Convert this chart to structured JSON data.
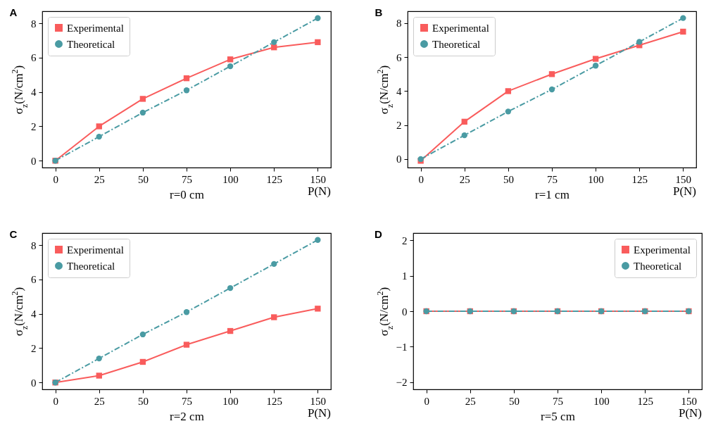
{
  "chart_data": [
    {
      "type": "line",
      "title": "A",
      "xlabel": "r=0 cm",
      "ylabel": "σ$_{z}$(N/cm$^{2}$)",
      "annotations": [
        "P(N)"
      ],
      "x": [
        0,
        25,
        50,
        75,
        100,
        125,
        150
      ],
      "xlim": [
        -7.5,
        157.5
      ],
      "xticks": [
        0,
        25,
        50,
        75,
        100,
        125,
        150
      ],
      "ylim": [
        -0.4,
        8.7
      ],
      "yticks": [
        0,
        2,
        4,
        6,
        8
      ],
      "legend": "top left",
      "series": [
        {
          "name": "Experimental",
          "color": "#f95c5c",
          "marker": "square",
          "line_style": "solid",
          "values": [
            0,
            2.0,
            3.6,
            4.8,
            5.9,
            6.6,
            6.9
          ]
        },
        {
          "name": "Theoretical",
          "color": "#4a9ba3",
          "marker": "circle",
          "line_style": "dashdot",
          "values": [
            0,
            1.4,
            2.8,
            4.1,
            5.5,
            6.9,
            8.3
          ]
        }
      ]
    },
    {
      "type": "line",
      "title": "B",
      "xlabel": "r=1 cm",
      "ylabel": "σ$_{z}$(N/cm$^{2}$)",
      "annotations": [
        "P(N)"
      ],
      "x": [
        0,
        25,
        50,
        75,
        100,
        125,
        150
      ],
      "xlim": [
        -7.5,
        157.5
      ],
      "xticks": [
        0,
        25,
        50,
        75,
        100,
        125,
        150
      ],
      "ylim": [
        -0.5,
        8.7
      ],
      "yticks": [
        0,
        2,
        4,
        6,
        8
      ],
      "legend": "top left",
      "series": [
        {
          "name": "Experimental",
          "color": "#f95c5c",
          "marker": "square",
          "line_style": "solid",
          "values": [
            -0.1,
            2.2,
            4.0,
            5.0,
            5.9,
            6.7,
            7.5
          ]
        },
        {
          "name": "Theoretical",
          "color": "#4a9ba3",
          "marker": "circle",
          "line_style": "dashdot",
          "values": [
            0,
            1.4,
            2.8,
            4.1,
            5.5,
            6.9,
            8.3
          ]
        }
      ]
    },
    {
      "type": "line",
      "title": "C",
      "xlabel": "r=2 cm",
      "ylabel": "σ$_{z}$(N/cm$^{2}$)",
      "annotations": [
        "P(N)"
      ],
      "x": [
        0,
        25,
        50,
        75,
        100,
        125,
        150
      ],
      "xlim": [
        -7.5,
        157.5
      ],
      "xticks": [
        0,
        25,
        50,
        75,
        100,
        125,
        150
      ],
      "ylim": [
        -0.4,
        8.7
      ],
      "yticks": [
        0,
        2,
        4,
        6,
        8
      ],
      "legend": "top left",
      "series": [
        {
          "name": "Experimental",
          "color": "#f95c5c",
          "marker": "square",
          "line_style": "solid",
          "values": [
            0.0,
            0.4,
            1.2,
            2.2,
            3.0,
            3.8,
            4.3
          ]
        },
        {
          "name": "Theoretical",
          "color": "#4a9ba3",
          "marker": "circle",
          "line_style": "dashdot",
          "values": [
            0,
            1.4,
            2.8,
            4.1,
            5.5,
            6.9,
            8.3
          ]
        }
      ]
    },
    {
      "type": "line",
      "title": "D",
      "xlabel": "r=5 cm",
      "ylabel": "σ$_{z}$(N/cm$^{2}$)",
      "annotations": [
        "P(N)"
      ],
      "x": [
        0,
        25,
        50,
        75,
        100,
        125,
        150
      ],
      "xlim": [
        -7.5,
        157.5
      ],
      "xticks": [
        0,
        25,
        50,
        75,
        100,
        125,
        150
      ],
      "ylim": [
        -2.2,
        2.2
      ],
      "yticks": [
        -2,
        -1,
        0,
        1,
        2
      ],
      "legend": "top right",
      "series": [
        {
          "name": "Experimental",
          "color": "#f95c5c",
          "marker": "square",
          "line_style": "solid",
          "values": [
            0,
            0,
            0,
            0,
            0,
            0,
            0
          ]
        },
        {
          "name": "Theoretical",
          "color": "#4a9ba3",
          "marker": "circle",
          "line_style": "dashdot",
          "values": [
            0,
            0,
            0,
            0,
            0,
            0,
            0
          ]
        }
      ]
    }
  ]
}
